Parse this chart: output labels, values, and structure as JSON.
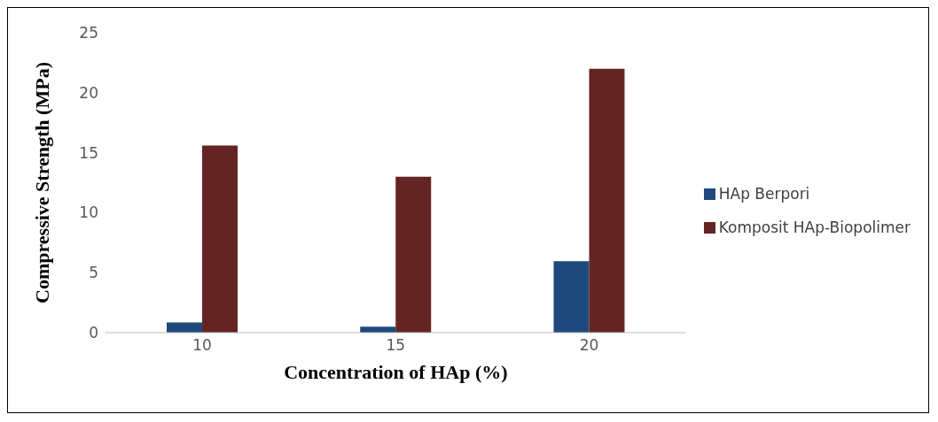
{
  "chart_data": {
    "type": "bar",
    "xlabel": "Concentration of HAp (%)",
    "ylabel": "Compressive Strength (MPa)",
    "categories": [
      "10",
      "15",
      "20"
    ],
    "series": [
      {
        "name": "HAp Berpori",
        "color": "#1f497d",
        "values": [
          0.85,
          0.5,
          5.95
        ]
      },
      {
        "name": "Komposit HAp-Biopolimer",
        "color": "#632523",
        "values": [
          15.6,
          13.0,
          22.0
        ]
      }
    ],
    "ylim": [
      0,
      25
    ],
    "yticks": [
      0,
      5,
      10,
      15,
      20,
      25
    ],
    "grid": false,
    "legend": "right"
  }
}
